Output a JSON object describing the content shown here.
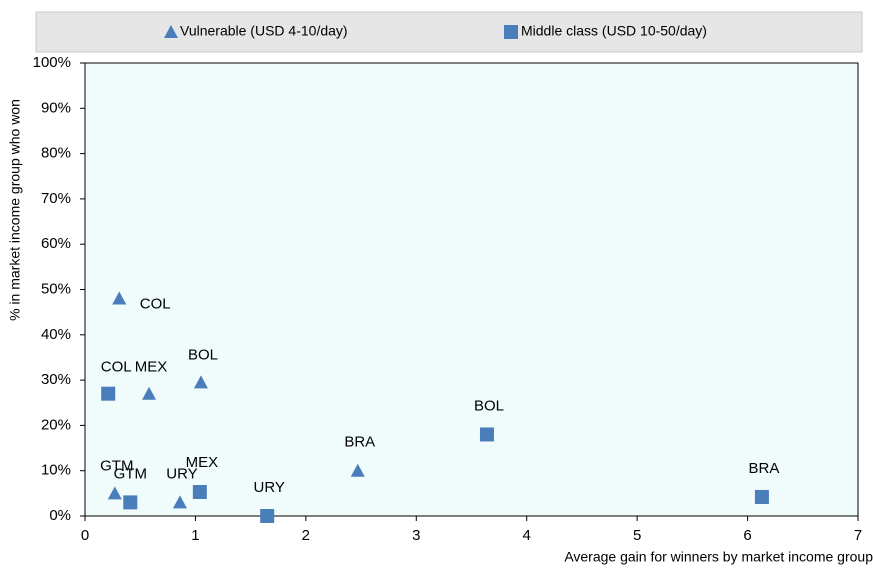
{
  "chart_data": {
    "type": "scatter",
    "xlabel": "Average gain for winners by market income group",
    "ylabel": "% in market income group who won",
    "xlim": [
      0,
      7
    ],
    "xticks": [
      0,
      1,
      2,
      3,
      4,
      5,
      6,
      7
    ],
    "ylim": [
      0,
      100
    ],
    "yticks": [
      {
        "value": 0,
        "label": "0%"
      },
      {
        "value": 10,
        "label": "10%"
      },
      {
        "value": 20,
        "label": "20%"
      },
      {
        "value": 30,
        "label": "30%"
      },
      {
        "value": 40,
        "label": "40%"
      },
      {
        "value": 50,
        "label": "50%"
      },
      {
        "value": 60,
        "label": "60%"
      },
      {
        "value": 70,
        "label": "70%"
      },
      {
        "value": 80,
        "label": "80%"
      },
      {
        "value": 90,
        "label": "90%"
      },
      {
        "value": 100,
        "label": "100%"
      }
    ],
    "series": [
      {
        "name": "Vulnerable (USD 4-10/day)",
        "marker": "triangle",
        "color": "#4a7ebb",
        "labels": [
          "COL",
          "MEX",
          "BOL",
          "GTM",
          "URY",
          "BRA"
        ],
        "x": [
          0.31,
          0.58,
          1.05,
          0.27,
          0.86,
          2.47
        ],
        "values": [
          48,
          27,
          29.5,
          5,
          3,
          10
        ]
      },
      {
        "name": "Middle class (USD 10-50/day)",
        "marker": "square",
        "color": "#4a7ebb",
        "labels": [
          "COL",
          "GTM",
          "MEX",
          "URY",
          "BOL",
          "BRA"
        ],
        "x": [
          0.21,
          0.41,
          1.04,
          1.65,
          3.64,
          6.13
        ],
        "values": [
          27,
          3,
          5.3,
          0,
          18,
          4.2
        ]
      }
    ]
  }
}
